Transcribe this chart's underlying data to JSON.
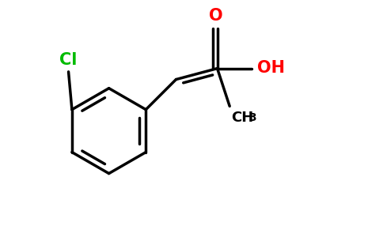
{
  "background_color": "#ffffff",
  "bond_color": "#000000",
  "cl_color": "#00bb00",
  "o_color": "#ff0000",
  "line_width": 2.5,
  "figsize": [
    4.84,
    3.0
  ],
  "dpi": 100,
  "xlim": [
    0.0,
    5.5
  ],
  "ylim": [
    0.0,
    3.2
  ]
}
